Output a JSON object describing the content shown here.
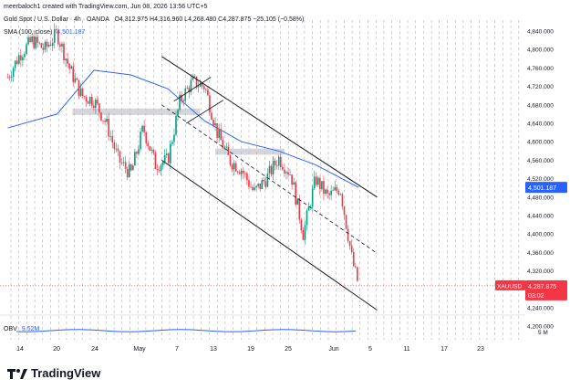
{
  "header": {
    "credit": "meerbaloch1 created with TradingView.com, Jun 08, 2026 13:56 UTC+5",
    "instrument": "Gold Spot / U.S. Dollar · 4h · OANDA",
    "ohlc_text": "O4,312.975 H4,316.960 L4,268.480 C4,287.875 −25.105 (−0.58%)",
    "sma_label": "SMA (100, close)",
    "sma_value": "4,501.187"
  },
  "price_axis": {
    "ticks": [
      "4,840.000",
      "4,800.000",
      "4,760.000",
      "4,720.000",
      "4,680.000",
      "4,640.000",
      "4,600.000",
      "4,560.000",
      "4,520.000",
      "4,480.000",
      "4,440.000",
      "4,400.000",
      "4,360.000",
      "4,320.000",
      "4,280.000",
      "4,240.000",
      "4,200.000"
    ],
    "sma_badge": "4,501.187",
    "price_badge_symbol": "XAUUSD",
    "price_badge_value": "4,287.875",
    "price_badge_countdown": "03:02",
    "sma_color": "#2962ff",
    "price_color": "#f23645"
  },
  "volume_pane": {
    "label": "OBV",
    "value": "9.52M",
    "axis_label": "5 M",
    "color": "#2962ff"
  },
  "time_axis": {
    "labels": [
      "14",
      "20",
      "24",
      "May",
      "7",
      "13",
      "19",
      "25",
      "Jun",
      "5",
      "11",
      "17",
      "23"
    ]
  },
  "branding": {
    "logo_text": "TradingView"
  },
  "chart_data": {
    "type": "candlestick",
    "symbol": "XAUUSD",
    "timeframe": "4h",
    "ylim": [
      4180,
      4860
    ],
    "candle_up_color": "#089981",
    "candle_down_color": "#f23645",
    "grid": "vertical dashed",
    "close_path": [
      {
        "t": "Apr 12",
        "close": 4740
      },
      {
        "t": "Apr 14",
        "close": 4790
      },
      {
        "t": "Apr 16",
        "close": 4820
      },
      {
        "t": "Apr 18",
        "close": 4800
      },
      {
        "t": "Apr 20",
        "close": 4835
      },
      {
        "t": "Apr 22",
        "close": 4760
      },
      {
        "t": "Apr 24",
        "close": 4700
      },
      {
        "t": "Apr 26",
        "close": 4690
      },
      {
        "t": "Apr 28",
        "close": 4640
      },
      {
        "t": "Apr 30",
        "close": 4560
      },
      {
        "t": "May 2",
        "close": 4530
      },
      {
        "t": "May 4",
        "close": 4630
      },
      {
        "t": "May 6",
        "close": 4550
      },
      {
        "t": "May 8",
        "close": 4560
      },
      {
        "t": "May 10",
        "close": 4690
      },
      {
        "t": "May 12",
        "close": 4730
      },
      {
        "t": "May 14",
        "close": 4720
      },
      {
        "t": "May 16",
        "close": 4620
      },
      {
        "t": "May 18",
        "close": 4560
      },
      {
        "t": "May 20",
        "close": 4540
      },
      {
        "t": "May 22",
        "close": 4490
      },
      {
        "t": "May 24",
        "close": 4520
      },
      {
        "t": "May 26",
        "close": 4565
      },
      {
        "t": "May 28",
        "close": 4530
      },
      {
        "t": "May 30",
        "close": 4400
      },
      {
        "t": "Jun 1",
        "close": 4520
      },
      {
        "t": "Jun 3",
        "close": 4480
      },
      {
        "t": "Jun 5",
        "close": 4500
      },
      {
        "t": "Jun 6",
        "close": 4420
      },
      {
        "t": "Jun 7",
        "close": 4340
      },
      {
        "t": "Jun 8",
        "close": 4288
      }
    ],
    "sma_100_path": [
      {
        "t": "Apr 12",
        "value": 4630
      },
      {
        "t": "Apr 20",
        "value": 4660
      },
      {
        "t": "Apr 26",
        "value": 4755
      },
      {
        "t": "May 2",
        "value": 4745
      },
      {
        "t": "May 8",
        "value": 4715
      },
      {
        "t": "May 14",
        "value": 4645
      },
      {
        "t": "May 20",
        "value": 4600
      },
      {
        "t": "May 26",
        "value": 4580
      },
      {
        "t": "Jun 1",
        "value": 4550
      },
      {
        "t": "Jun 8",
        "value": 4501
      }
    ],
    "last": {
      "open": 4312.975,
      "high": 4316.96,
      "low": 4268.48,
      "close": 4287.875,
      "change": -25.105,
      "change_pct": -0.58
    }
  }
}
